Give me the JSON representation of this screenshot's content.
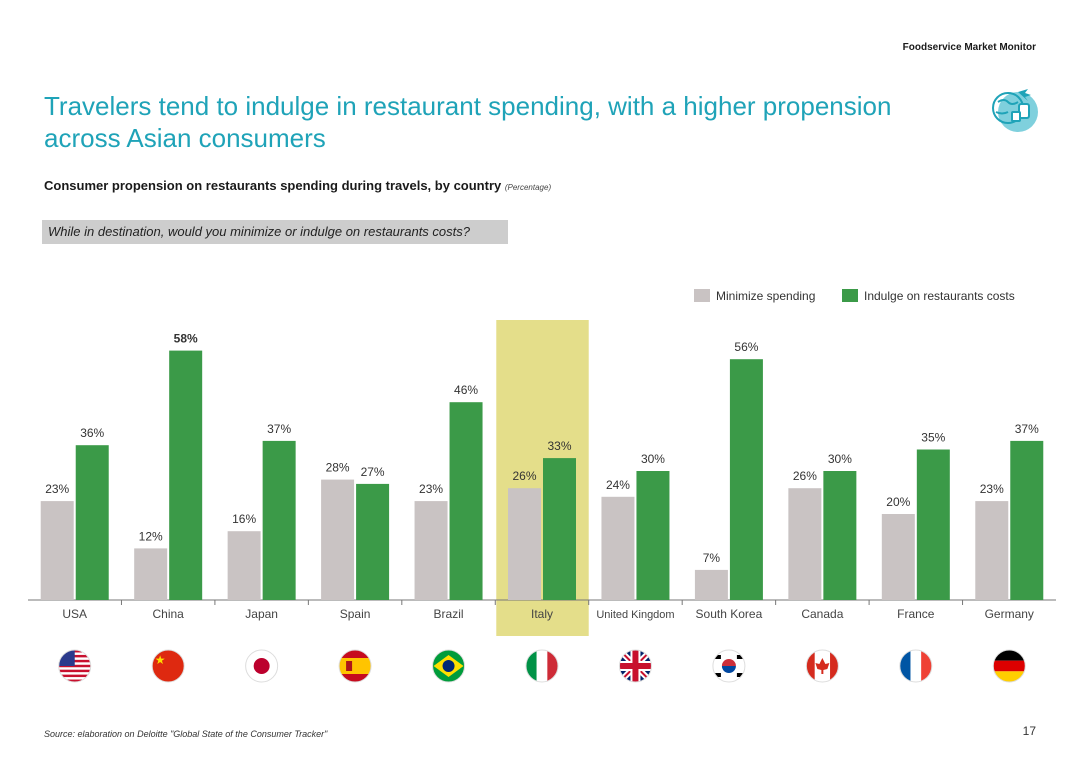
{
  "header": {
    "brand": "Foodservice Market Monitor"
  },
  "title": "Travelers tend to indulge in restaurant spending, with a higher propension across Asian consumers",
  "subtitle": {
    "text": "Consumer propension on restaurants spending during travels, by country ",
    "unit": "(Percentage)"
  },
  "question": "While in destination, would you minimize or indulge on restaurants costs?",
  "footer": {
    "source": "Source: elaboration on Deloitte \"Global State of the Consumer Tracker\"",
    "page": "17"
  },
  "colors": {
    "minimize": "#c9c3c3",
    "indulge": "#3b9a48",
    "highlight": "#e4de8a",
    "title": "#1fa3b8"
  },
  "chart_data": {
    "type": "bar",
    "categories": [
      "USA",
      "China",
      "Japan",
      "Spain",
      "Brazil",
      "Italy",
      "United Kingdom",
      "South Korea",
      "Canada",
      "France",
      "Germany"
    ],
    "series": [
      {
        "name": "Minimize spending",
        "values": [
          23,
          12,
          16,
          28,
          23,
          26,
          24,
          7,
          26,
          20,
          23
        ]
      },
      {
        "name": "Indulge on restaurants costs",
        "values": [
          36,
          58,
          37,
          27,
          46,
          33,
          30,
          56,
          30,
          35,
          37
        ]
      }
    ],
    "value_suffix": "%",
    "highlight_category": "Italy",
    "bold_label": {
      "series": 1,
      "category": "China"
    },
    "legend_position": "top-right",
    "ylim": [
      0,
      60
    ],
    "flags": [
      "usa-flag",
      "china-flag",
      "japan-flag",
      "spain-flag",
      "brazil-flag",
      "italy-flag",
      "uk-flag",
      "south-korea-flag",
      "canada-flag",
      "france-flag",
      "germany-flag"
    ]
  }
}
